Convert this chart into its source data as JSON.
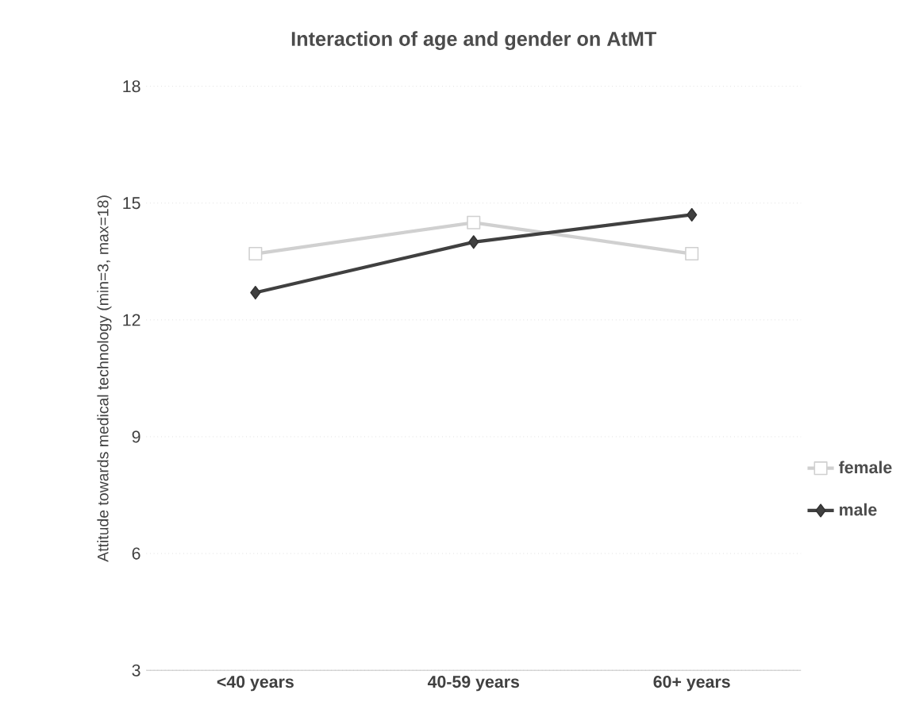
{
  "chart_data": {
    "type": "line",
    "title": "Interaction of age and gender on AtMT",
    "ylabel": "Attitude towards medical technology  (min=3, max=18)",
    "categories": [
      "<40 years",
      "40-59 years",
      "60+ years"
    ],
    "series": [
      {
        "name": "female",
        "color": "#d0d0d0",
        "marker": "square",
        "values": [
          13.7,
          14.5,
          13.7
        ]
      },
      {
        "name": "male",
        "color": "#404040",
        "marker": "diamond",
        "values": [
          12.7,
          14.0,
          14.7
        ]
      }
    ],
    "ylim": [
      3,
      18
    ],
    "yticks": [
      3,
      6,
      9,
      12,
      15,
      18
    ],
    "grid": "y",
    "legend": "right",
    "line_style": "solid"
  }
}
